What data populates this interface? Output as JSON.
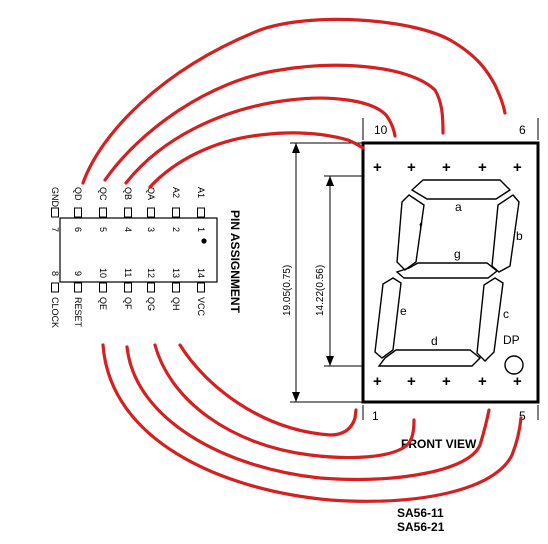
{
  "ic": {
    "title": "PIN ASSIGNMENT",
    "dot_marker": "pin-1-marker",
    "top_pins": [
      {
        "num": "7",
        "name": "GND"
      },
      {
        "num": "6",
        "name": "QD"
      },
      {
        "num": "5",
        "name": "QC"
      },
      {
        "num": "4",
        "name": "QB"
      },
      {
        "num": "3",
        "name": "QA"
      },
      {
        "num": "2",
        "name": "A2"
      },
      {
        "num": "1",
        "name": "A1"
      }
    ],
    "bottom_pins": [
      {
        "num": "8",
        "name": "CLOCK"
      },
      {
        "num": "9",
        "name": "RESET"
      },
      {
        "num": "10",
        "name": "QE"
      },
      {
        "num": "11",
        "name": "QF"
      },
      {
        "num": "12",
        "name": "QG"
      },
      {
        "num": "13",
        "name": "QH"
      },
      {
        "num": "14",
        "name": "VCC"
      }
    ]
  },
  "display": {
    "dim_outer": "19.05(0.75)",
    "dim_inner": "14.22(0.56)",
    "pin_top_left": "10",
    "pin_top_right": "6",
    "pin_bottom_left": "1",
    "pin_bottom_right": "5",
    "segments": {
      "a": "a",
      "b": "b",
      "c": "c",
      "d": "d",
      "e": "e",
      "f": "f",
      "g": "g"
    },
    "dp": "DP",
    "plus": "+",
    "front_view": "FRONT VIEW",
    "part_numbers": [
      "SA56-11",
      "SA56-21"
    ]
  },
  "colors": {
    "wire": "#d42020",
    "ink": "#000000"
  }
}
